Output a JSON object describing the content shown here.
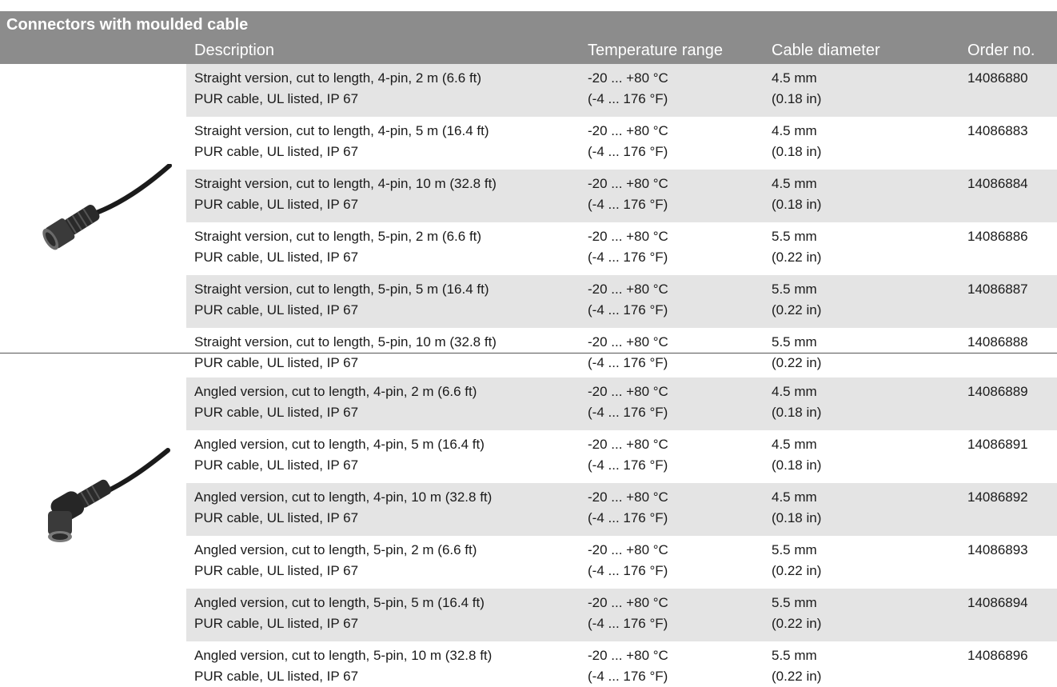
{
  "header": {
    "title": "Connectors with moulded cable",
    "columns": {
      "description": "Description",
      "temperature": "Temperature range",
      "cable": "Cable diameter",
      "order": "Order no."
    }
  },
  "rows": [
    {
      "desc1": "Straight version, cut to length, 4-pin, 2 m (6.6 ft)",
      "desc2": "PUR cable, UL listed, IP 67",
      "temp1": "-20 ... +80 °C",
      "temp2": "(-4 ... 176 °F)",
      "cable1": "4.5 mm",
      "cable2": "(0.18 in)",
      "order": "14086880"
    },
    {
      "desc1": "Straight version, cut to length, 4-pin, 5 m (16.4 ft)",
      "desc2": "PUR cable, UL listed, IP 67",
      "temp1": "-20 ... +80 °C",
      "temp2": "(-4 ... 176 °F)",
      "cable1": "4.5 mm",
      "cable2": "(0.18 in)",
      "order": "14086883"
    },
    {
      "desc1": "Straight version, cut to length, 4-pin, 10 m (32.8 ft)",
      "desc2": "PUR cable, UL listed, IP 67",
      "temp1": "-20 ... +80 °C",
      "temp2": "(-4 ... 176 °F)",
      "cable1": "4.5 mm",
      "cable2": "(0.18 in)",
      "order": "14086884"
    },
    {
      "desc1": "Straight version, cut to length, 5-pin, 2 m (6.6 ft)",
      "desc2": "PUR cable, UL listed, IP 67",
      "temp1": "-20 ... +80 °C",
      "temp2": "(-4 ... 176 °F)",
      "cable1": "5.5 mm",
      "cable2": "(0.22 in)",
      "order": "14086886"
    },
    {
      "desc1": "Straight version, cut to length, 5-pin, 5 m (16.4 ft)",
      "desc2": "PUR cable, UL listed, IP 67",
      "temp1": "-20 ... +80 °C",
      "temp2": "(-4 ... 176 °F)",
      "cable1": "5.5 mm",
      "cable2": "(0.22 in)",
      "order": "14086887"
    },
    {
      "desc1": "Straight version, cut to length, 5-pin, 10 m (32.8 ft)",
      "desc2": "PUR cable, UL listed, IP 67",
      "temp1": "-20 ... +80 °C",
      "temp2": "(-4 ... 176 °F)",
      "cable1": "5.5 mm",
      "cable2": "(0.22 in)",
      "order": "14086888"
    },
    {
      "desc1": "Angled version, cut to length, 4-pin, 2 m (6.6 ft)",
      "desc2": "PUR cable, UL listed, IP 67",
      "temp1": "-20 ... +80 °C",
      "temp2": "(-4 ... 176 °F)",
      "cable1": "4.5 mm",
      "cable2": "(0.18 in)",
      "order": "14086889"
    },
    {
      "desc1": "Angled version, cut to length, 4-pin, 5 m (16.4 ft)",
      "desc2": "PUR cable, UL listed, IP 67",
      "temp1": "-20 ... +80 °C",
      "temp2": "(-4 ... 176 °F)",
      "cable1": "4.5 mm",
      "cable2": "(0.18 in)",
      "order": "14086891"
    },
    {
      "desc1": "Angled version, cut to length, 4-pin, 10 m (32.8 ft)",
      "desc2": "PUR cable, UL listed, IP 67",
      "temp1": "-20 ... +80 °C",
      "temp2": "(-4 ... 176 °F)",
      "cable1": "4.5 mm",
      "cable2": "(0.18 in)",
      "order": "14086892"
    },
    {
      "desc1": "Angled version, cut to length, 5-pin, 2 m (6.6 ft)",
      "desc2": "PUR cable, UL listed, IP 67",
      "temp1": "-20 ... +80 °C",
      "temp2": "(-4 ... 176 °F)",
      "cable1": "5.5 mm",
      "cable2": "(0.22 in)",
      "order": "14086893"
    },
    {
      "desc1": "Angled version, cut to length, 5-pin, 5 m (16.4 ft)",
      "desc2": "PUR cable, UL listed, IP 67",
      "temp1": "-20 ... +80 °C",
      "temp2": "(-4 ... 176 °F)",
      "cable1": "5.5 mm",
      "cable2": "(0.22 in)",
      "order": "14086894"
    },
    {
      "desc1": "Angled version, cut to length, 5-pin, 10 m (32.8 ft)",
      "desc2": "PUR cable, UL listed, IP 67",
      "temp1": "-20 ... +80 °C",
      "temp2": "(-4 ... 176 °F)",
      "cable1": "5.5 mm",
      "cable2": "(0.22 in)",
      "order": "14086896"
    }
  ],
  "images": {
    "straight": "straight-connector-icon",
    "angled": "angled-connector-icon"
  }
}
